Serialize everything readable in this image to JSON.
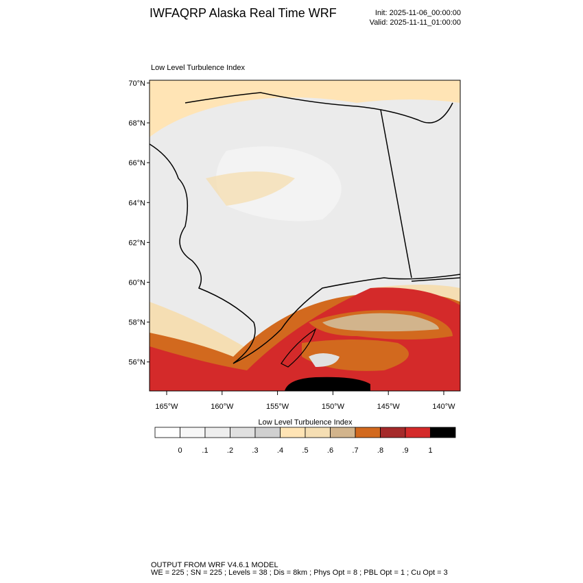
{
  "header": {
    "title": "IWFAQRP Alaska Real Time WRF",
    "init": "Init: 2025-11-06_00:00:00",
    "valid": "Valid: 2025-11-11_01:00:00"
  },
  "map": {
    "subtitle": "Low Level Turbulence Index",
    "lat_labels": [
      "70°N",
      "68°N",
      "66°N",
      "64°N",
      "62°N",
      "60°N",
      "58°N",
      "56°N"
    ],
    "lon_labels": [
      "165°W",
      "160°W",
      "155°W",
      "150°W",
      "145°W",
      "140°W"
    ]
  },
  "colorbar": {
    "title": "Low Level Turbulence Index",
    "colors": [
      "#ffffff",
      "#f7f7f7",
      "#eeeeee",
      "#e0e0e0",
      "#d0d0d0",
      "#ffe4b5",
      "#f5deb3",
      "#d2b48c",
      "#d2691e",
      "#a52a2a",
      "#d42a2a",
      "#000000"
    ],
    "labels": [
      "0",
      ".1",
      ".2",
      ".3",
      ".4",
      ".5",
      ".6",
      ".7",
      ".8",
      ".9",
      "1"
    ]
  },
  "footer": {
    "line1": "OUTPUT FROM WRF V4.6.1 MODEL",
    "line2": "WE = 225 ; SN = 225 ; Levels = 38 ; Dis = 8km ; Phys Opt = 8 ; PBL Opt = 1 ; Cu Opt = 3"
  }
}
